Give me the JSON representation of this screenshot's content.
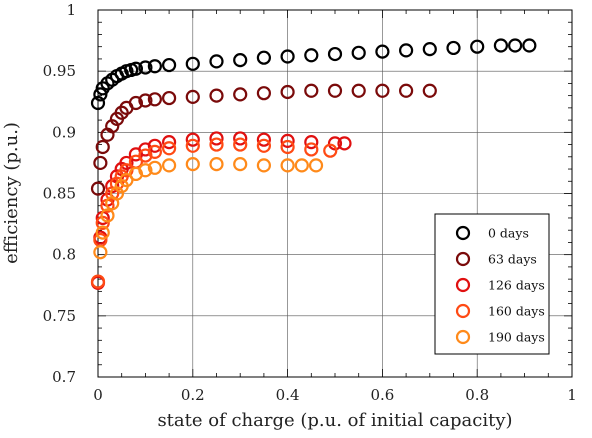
{
  "chart_data": {
    "type": "scatter",
    "title": "",
    "xlabel": "state of charge (p.u. of initial capacity)",
    "ylabel": "efficiency (p.u.)",
    "xlim": [
      0,
      1
    ],
    "ylim": [
      0.7,
      1
    ],
    "xticks": [
      "0",
      "0.2",
      "0.4",
      "0.6",
      "0.8",
      "1"
    ],
    "yticks": [
      "0.7",
      "0.75",
      "0.8",
      "0.85",
      "0.9",
      "0.95",
      "1"
    ],
    "grid": true,
    "legend_position": "lower-right",
    "marker": "open-circle",
    "series": [
      {
        "name": "0 days",
        "color": "#000000",
        "x": [
          0.0,
          0.005,
          0.01,
          0.02,
          0.03,
          0.04,
          0.05,
          0.06,
          0.07,
          0.08,
          0.1,
          0.12,
          0.15,
          0.2,
          0.25,
          0.3,
          0.35,
          0.4,
          0.45,
          0.5,
          0.55,
          0.6,
          0.65,
          0.7,
          0.75,
          0.8,
          0.85,
          0.88,
          0.91
        ],
        "y": [
          0.924,
          0.931,
          0.936,
          0.94,
          0.943,
          0.946,
          0.948,
          0.95,
          0.951,
          0.952,
          0.953,
          0.954,
          0.955,
          0.956,
          0.958,
          0.959,
          0.961,
          0.962,
          0.963,
          0.964,
          0.965,
          0.966,
          0.967,
          0.968,
          0.969,
          0.97,
          0.971,
          0.971,
          0.971
        ]
      },
      {
        "name": "63 days",
        "color": "#7a0a0a",
        "x": [
          0.0,
          0.005,
          0.01,
          0.02,
          0.03,
          0.04,
          0.05,
          0.06,
          0.08,
          0.1,
          0.12,
          0.15,
          0.2,
          0.25,
          0.3,
          0.35,
          0.4,
          0.45,
          0.5,
          0.55,
          0.6,
          0.65,
          0.7
        ],
        "y": [
          0.854,
          0.875,
          0.888,
          0.898,
          0.905,
          0.911,
          0.916,
          0.92,
          0.924,
          0.926,
          0.927,
          0.928,
          0.929,
          0.93,
          0.931,
          0.932,
          0.933,
          0.934,
          0.934,
          0.934,
          0.934,
          0.934,
          0.934
        ]
      },
      {
        "name": "126 days",
        "color": "#e01010",
        "x": [
          0.0,
          0.005,
          0.01,
          0.02,
          0.03,
          0.04,
          0.05,
          0.06,
          0.08,
          0.1,
          0.12,
          0.15,
          0.2,
          0.25,
          0.3,
          0.35,
          0.4,
          0.45,
          0.5,
          0.52
        ],
        "y": [
          0.777,
          0.814,
          0.83,
          0.845,
          0.856,
          0.864,
          0.87,
          0.875,
          0.882,
          0.886,
          0.889,
          0.892,
          0.894,
          0.895,
          0.895,
          0.894,
          0.893,
          0.892,
          0.891,
          0.891
        ]
      },
      {
        "name": "160 days",
        "color": "#ff4a14",
        "x": [
          0.0,
          0.005,
          0.01,
          0.02,
          0.03,
          0.04,
          0.05,
          0.06,
          0.08,
          0.1,
          0.12,
          0.15,
          0.2,
          0.25,
          0.3,
          0.35,
          0.4,
          0.45,
          0.49
        ],
        "y": [
          0.778,
          0.812,
          0.826,
          0.84,
          0.85,
          0.858,
          0.864,
          0.869,
          0.876,
          0.881,
          0.884,
          0.887,
          0.889,
          0.89,
          0.89,
          0.889,
          0.888,
          0.886,
          0.885
        ]
      },
      {
        "name": "190 days",
        "color": "#ff8a1a",
        "x": [
          0.005,
          0.01,
          0.02,
          0.03,
          0.04,
          0.05,
          0.06,
          0.08,
          0.1,
          0.12,
          0.15,
          0.2,
          0.25,
          0.3,
          0.35,
          0.4,
          0.43,
          0.46
        ],
        "y": [
          0.802,
          0.818,
          0.832,
          0.842,
          0.85,
          0.856,
          0.861,
          0.866,
          0.869,
          0.871,
          0.873,
          0.874,
          0.874,
          0.874,
          0.873,
          0.873,
          0.873,
          0.873
        ]
      }
    ]
  }
}
